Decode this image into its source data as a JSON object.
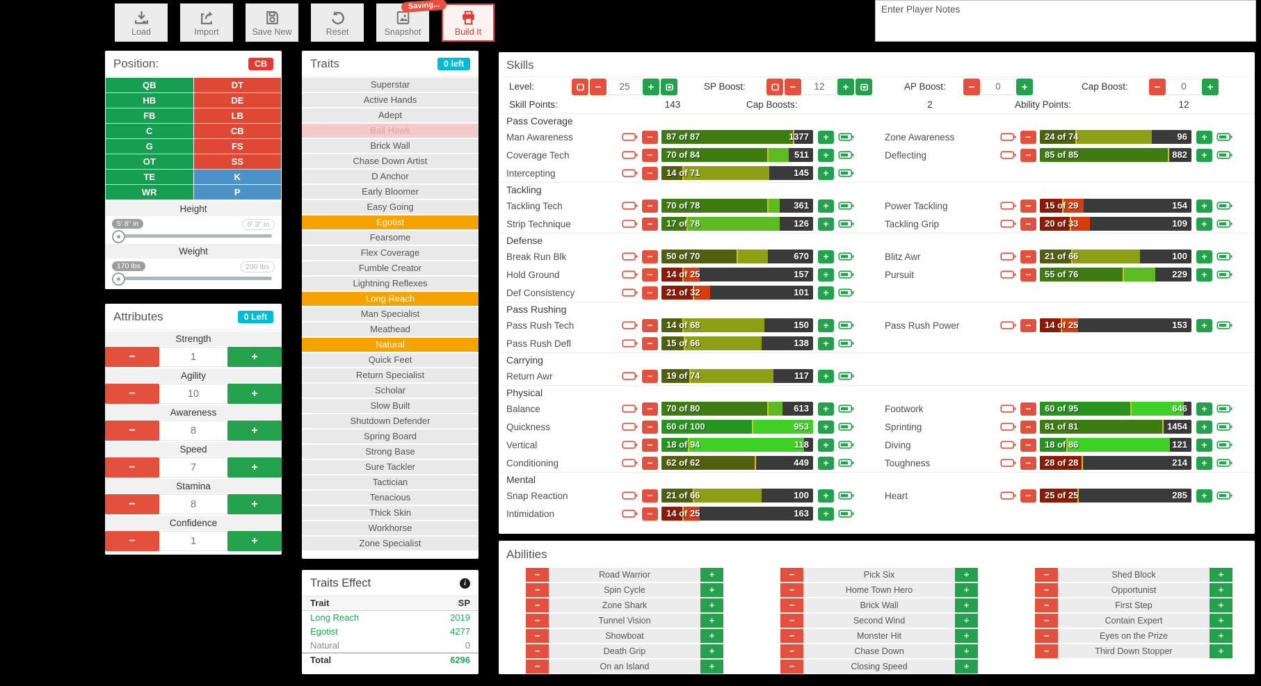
{
  "colors": {
    "page_bg": "#000000",
    "accent_red": "#e53935",
    "btn_red": "#e4503e",
    "btn_green": "#23a14d",
    "tile_green": "#189e52",
    "tile_red": "#e04836",
    "tile_blue": "#4d92c7",
    "trait_orange": "#f5a303",
    "badge_cyan": "#00bcd4",
    "bar_gray": "#3a3a3a",
    "bar_sliver": "#d2c41e"
  },
  "toolbar": {
    "saving_badge": "Saving...",
    "buttons": [
      {
        "id": "load",
        "label": "Load",
        "icon": "download-icon"
      },
      {
        "id": "import",
        "label": "Import",
        "icon": "export-icon"
      },
      {
        "id": "save_new",
        "label": "Save New",
        "icon": "floppy-icon"
      },
      {
        "id": "reset",
        "label": "Reset",
        "icon": "undo-icon"
      },
      {
        "id": "snapshot",
        "label": "Snapshot",
        "icon": "image-icon"
      },
      {
        "id": "build",
        "label": "Build It",
        "icon": "printer-icon"
      }
    ]
  },
  "notes": {
    "placeholder": "Enter Player Notes"
  },
  "position_panel": {
    "title": "Position:",
    "selected_badge": "CB",
    "left": [
      {
        "label": "QB",
        "color": "green"
      },
      {
        "label": "HB",
        "color": "green"
      },
      {
        "label": "FB",
        "color": "green"
      },
      {
        "label": "C",
        "color": "green"
      },
      {
        "label": "G",
        "color": "green"
      },
      {
        "label": "OT",
        "color": "green"
      },
      {
        "label": "TE",
        "color": "green"
      },
      {
        "label": "WR",
        "color": "green"
      }
    ],
    "right": [
      {
        "label": "DT",
        "color": "red"
      },
      {
        "label": "DE",
        "color": "red"
      },
      {
        "label": "LB",
        "color": "red"
      },
      {
        "label": "CB",
        "color": "red"
      },
      {
        "label": "FS",
        "color": "red"
      },
      {
        "label": "SS",
        "color": "red"
      },
      {
        "label": "K",
        "color": "blue"
      },
      {
        "label": "P",
        "color": "blue"
      }
    ],
    "height": {
      "label": "Height",
      "min": "5' 8\" in",
      "max": "6' 3\" in"
    },
    "weight": {
      "label": "Weight",
      "min": "170 lbs",
      "max": "200 lbs"
    }
  },
  "attributes_panel": {
    "title": "Attributes",
    "badge": "0 Left",
    "items": [
      {
        "label": "Strength",
        "value": "1"
      },
      {
        "label": "Agility",
        "value": "10"
      },
      {
        "label": "Awareness",
        "value": "8"
      },
      {
        "label": "Speed",
        "value": "7"
      },
      {
        "label": "Stamina",
        "value": "8"
      },
      {
        "label": "Confidence",
        "value": "1"
      }
    ]
  },
  "traits_panel": {
    "title": "Traits",
    "badge": "0 left",
    "items": [
      {
        "label": "Superstar",
        "state": "normal"
      },
      {
        "label": "Active Hands",
        "state": "normal"
      },
      {
        "label": "Adept",
        "state": "normal"
      },
      {
        "label": "Ball Hawk",
        "state": "disabled"
      },
      {
        "label": "Brick Wall",
        "state": "normal"
      },
      {
        "label": "Chase Down Artist",
        "state": "normal"
      },
      {
        "label": "D Anchor",
        "state": "normal"
      },
      {
        "label": "Early Bloomer",
        "state": "normal"
      },
      {
        "label": "Easy Going",
        "state": "normal"
      },
      {
        "label": "Egotist",
        "state": "selected"
      },
      {
        "label": "Fearsome",
        "state": "normal"
      },
      {
        "label": "Flex Coverage",
        "state": "normal"
      },
      {
        "label": "Fumble Creator",
        "state": "normal"
      },
      {
        "label": "Lightning Reflexes",
        "state": "normal"
      },
      {
        "label": "Long Reach",
        "state": "selected"
      },
      {
        "label": "Man Specialist",
        "state": "normal"
      },
      {
        "label": "Meathead",
        "state": "normal"
      },
      {
        "label": "Natural",
        "state": "selected"
      },
      {
        "label": "Quick Feet",
        "state": "normal"
      },
      {
        "label": "Return Specialist",
        "state": "normal"
      },
      {
        "label": "Scholar",
        "state": "normal"
      },
      {
        "label": "Slow Built",
        "state": "normal"
      },
      {
        "label": "Shutdown Defender",
        "state": "normal"
      },
      {
        "label": "Spring Board",
        "state": "normal"
      },
      {
        "label": "Strong Base",
        "state": "normal"
      },
      {
        "label": "Sure Tackler",
        "state": "normal"
      },
      {
        "label": "Tactician",
        "state": "normal"
      },
      {
        "label": "Tenacious",
        "state": "normal"
      },
      {
        "label": "Thick Skin",
        "state": "normal"
      },
      {
        "label": "Workhorse",
        "state": "normal"
      },
      {
        "label": "Zone Specialist",
        "state": "normal"
      }
    ]
  },
  "traits_effect": {
    "title": "Traits Effect",
    "col_trait": "Trait",
    "col_sp": "SP",
    "rows": [
      {
        "trait": "Long Reach",
        "sp": "2019",
        "highlight": true
      },
      {
        "trait": "Egotist",
        "sp": "4277",
        "highlight": true
      },
      {
        "trait": "Natural",
        "sp": "0",
        "highlight": false
      }
    ],
    "total_label": "Total",
    "total_sp": "6296"
  },
  "skills_panel": {
    "title": "Skills",
    "bar_max": 100,
    "tiers": {
      "green": {
        "dark": "#3e7c12",
        "light": "#5cbb20"
      },
      "green2": {
        "dark": "#27941d",
        "light": "#3fd125"
      },
      "olive": {
        "dark": "#51600e",
        "light": "#8d9f14"
      },
      "red": {
        "dark": "#8e1a06",
        "light": "#d93b10"
      }
    },
    "controls": [
      {
        "label": "Level:",
        "value": "25",
        "minmax": true
      },
      {
        "label": "SP Boost:",
        "value": "12",
        "minmax": true
      },
      {
        "label": "AP Boost:",
        "value": "0",
        "minmax": false
      },
      {
        "label": "Cap Boost:",
        "value": "0",
        "minmax": false
      }
    ],
    "totals": [
      {
        "label": "Skill Points:",
        "value": "143"
      },
      {
        "label": "Cap Boosts:",
        "value": "2"
      },
      {
        "label": "Ability Points:",
        "value": "12"
      }
    ],
    "of_word": "of",
    "categories": [
      {
        "name": "Pass Coverage",
        "left": [
          {
            "label": "Man Awareness",
            "value": 87,
            "cap": 87,
            "cost": "1377",
            "tier": "green"
          },
          {
            "label": "Coverage Tech",
            "value": 70,
            "cap": 84,
            "cost": "511",
            "tier": "green"
          },
          {
            "label": "Intercepting",
            "value": 14,
            "cap": 71,
            "cost": "145",
            "tier": "olive"
          }
        ],
        "right": [
          {
            "label": "Zone Awareness",
            "value": 24,
            "cap": 74,
            "cost": "96",
            "tier": "olive"
          },
          {
            "label": "Deflecting",
            "value": 85,
            "cap": 85,
            "cost": "882",
            "tier": "green"
          }
        ]
      },
      {
        "name": "Tackling",
        "left": [
          {
            "label": "Tackling Tech",
            "value": 70,
            "cap": 78,
            "cost": "361",
            "tier": "green"
          },
          {
            "label": "Strip Technique",
            "value": 17,
            "cap": 78,
            "cost": "126",
            "tier": "green"
          }
        ],
        "right": [
          {
            "label": "Power Tackling",
            "value": 15,
            "cap": 29,
            "cost": "154",
            "tier": "red"
          },
          {
            "label": "Tackling Grip",
            "value": 20,
            "cap": 33,
            "cost": "109",
            "tier": "red"
          }
        ]
      },
      {
        "name": "Defense",
        "left": [
          {
            "label": "Break Run Blk",
            "value": 50,
            "cap": 70,
            "cost": "670",
            "tier": "olive"
          },
          {
            "label": "Hold Ground",
            "value": 14,
            "cap": 25,
            "cost": "157",
            "tier": "red"
          },
          {
            "label": "Def Consistency",
            "value": 21,
            "cap": 32,
            "cost": "101",
            "tier": "red"
          }
        ],
        "right": [
          {
            "label": "Blitz Awr",
            "value": 21,
            "cap": 66,
            "cost": "100",
            "tier": "olive"
          },
          {
            "label": "Pursuit",
            "value": 55,
            "cap": 76,
            "cost": "229",
            "tier": "green"
          }
        ]
      },
      {
        "name": "Pass Rushing",
        "left": [
          {
            "label": "Pass Rush Tech",
            "value": 14,
            "cap": 68,
            "cost": "150",
            "tier": "olive"
          },
          {
            "label": "Pass Rush Defl",
            "value": 15,
            "cap": 66,
            "cost": "138",
            "tier": "olive"
          }
        ],
        "right": [
          {
            "label": "Pass Rush Power",
            "value": 14,
            "cap": 25,
            "cost": "153",
            "tier": "red"
          }
        ]
      },
      {
        "name": "Carrying",
        "left": [
          {
            "label": "Return Awr",
            "value": 19,
            "cap": 74,
            "cost": "117",
            "tier": "olive"
          }
        ],
        "right": []
      },
      {
        "name": "Physical",
        "left": [
          {
            "label": "Balance",
            "value": 70,
            "cap": 80,
            "cost": "613",
            "tier": "green"
          },
          {
            "label": "Quickness",
            "value": 60,
            "cap": 100,
            "cost": "953",
            "tier": "green2"
          },
          {
            "label": "Vertical",
            "value": 18,
            "cap": 94,
            "cost": "118",
            "tier": "green2"
          },
          {
            "label": "Conditioning",
            "value": 62,
            "cap": 62,
            "cost": "449",
            "tier": "olive"
          }
        ],
        "right": [
          {
            "label": "Footwork",
            "value": 60,
            "cap": 95,
            "cost": "646",
            "tier": "green2"
          },
          {
            "label": "Sprinting",
            "value": 81,
            "cap": 81,
            "cost": "1454",
            "tier": "green"
          },
          {
            "label": "Diving",
            "value": 18,
            "cap": 86,
            "cost": "121",
            "tier": "green2"
          },
          {
            "label": "Toughness",
            "value": 28,
            "cap": 28,
            "cost": "214",
            "tier": "red"
          }
        ]
      },
      {
        "name": "Mental",
        "left": [
          {
            "label": "Snap Reaction",
            "value": 21,
            "cap": 66,
            "cost": "100",
            "tier": "olive"
          },
          {
            "label": "Intimidation",
            "value": 14,
            "cap": 25,
            "cost": "163",
            "tier": "red"
          }
        ],
        "right": [
          {
            "label": "Heart",
            "value": 25,
            "cap": 25,
            "cost": "285",
            "tier": "red"
          }
        ]
      }
    ]
  },
  "abilities_panel": {
    "title": "Abilities",
    "columns": [
      [
        "Road Warrior",
        "Spin Cycle",
        "Zone Shark",
        "Tunnel Vision",
        "Showboat",
        "Death Grip",
        "On an Island"
      ],
      [
        "Pick Six",
        "Home Town Hero",
        "Brick Wall",
        "Second Wind",
        "Monster Hit",
        "Chase Down",
        "Closing Speed"
      ],
      [
        "Shed Block",
        "Opportunist",
        "First Step",
        "Contain Expert",
        "Eyes on the Prize",
        "Third Down Stopper"
      ]
    ]
  }
}
